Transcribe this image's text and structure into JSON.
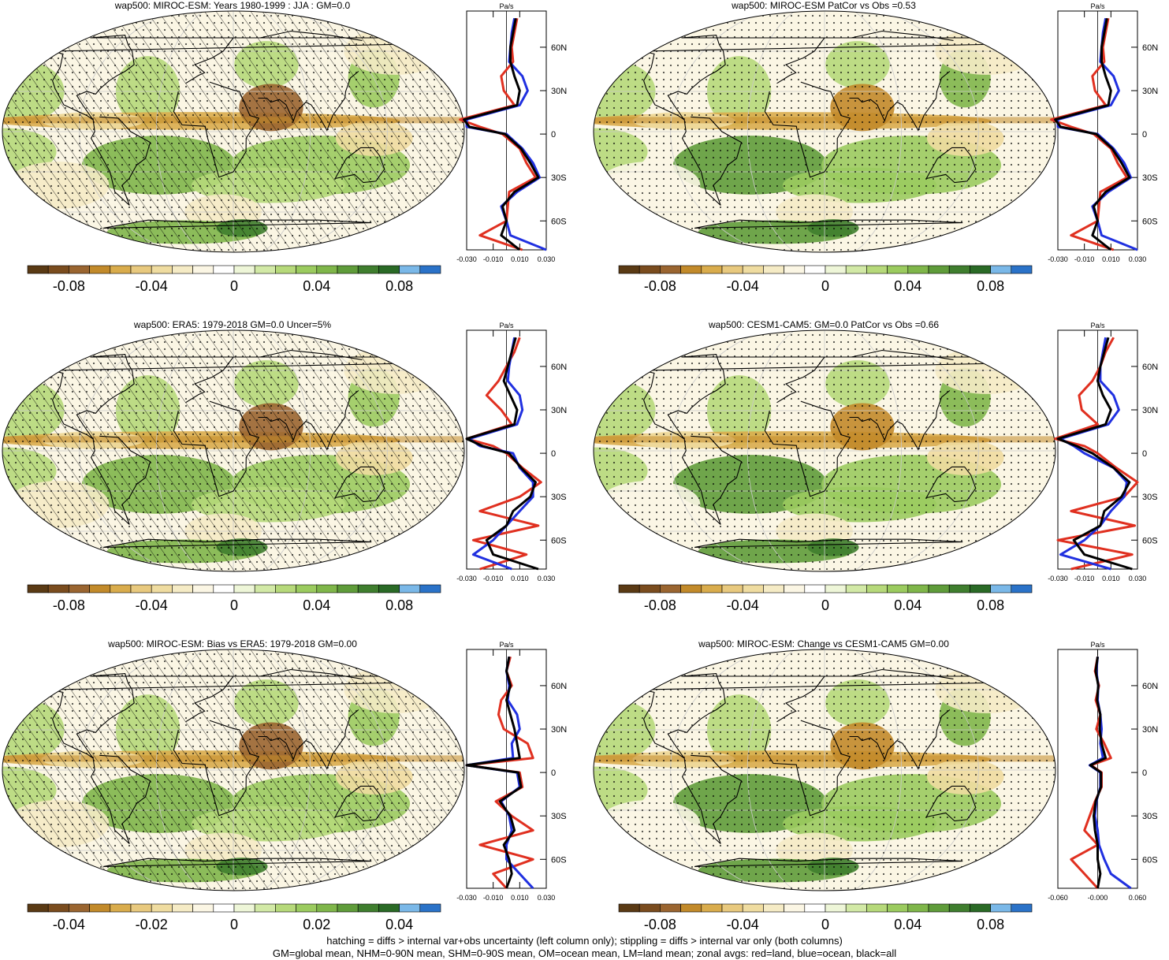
{
  "footer": {
    "line1": "hatching = diffs > internal var+obs uncertainty (left column only); stippling = diffs > internal var only (both columns)",
    "line2": "GM=global mean, NHM=0-90N mean, SHM=0-90S mean, OM=ocean mean, LM=land mean; zonal avgs: red=land, blue=ocean, black=all"
  },
  "colors": {
    "palette": [
      "#5a3a14",
      "#7a4c1e",
      "#9a6530",
      "#c28a2a",
      "#d9ac4c",
      "#e8c97e",
      "#efdca0",
      "#f5ebc5",
      "#fbf6e4",
      "#ffffff",
      "#eef6d8",
      "#d2e9a6",
      "#b6d97a",
      "#9bcb5f",
      "#7fb64a",
      "#5f9c3a",
      "#3f7e2e",
      "#2a6a26",
      "#7ab8e8",
      "#2a72c8"
    ],
    "land": "#e03020",
    "ocean": "#2030e0",
    "all": "#000000",
    "coast": "#000000",
    "grid": "#c8c8c8"
  },
  "chart_data": [
    {
      "type": "heatmap",
      "title": "wap500: MIROC-ESM: Years 1980-1999 : JJA : GM=0.0",
      "colorbar_ticks": [
        "-0.08",
        "-0.04",
        "0",
        "0.04",
        "0.08"
      ],
      "colorbar_range": [
        -0.1,
        0.1
      ],
      "hatching": true,
      "stippling": true,
      "profile": {
        "unit": "Pa/s",
        "x_ticks": [
          "-0.030",
          "-0.010",
          "0.010",
          "0.030"
        ],
        "xlim": [
          -0.03,
          0.03
        ],
        "y_ticks": [
          "60N",
          "30N",
          "0",
          "30S",
          "60S"
        ],
        "y_tick_values": [
          60,
          30,
          0,
          -30,
          -60
        ],
        "ylim": [
          -80,
          85
        ],
        "lat": [
          80,
          70,
          60,
          50,
          40,
          30,
          20,
          10,
          5,
          0,
          -10,
          -20,
          -30,
          -40,
          -50,
          -60,
          -70,
          -80
        ],
        "land": [
          0.008,
          0.006,
          0.004,
          0.005,
          -0.004,
          -0.002,
          0.006,
          -0.035,
          -0.02,
          -0.003,
          0.01,
          0.015,
          0.022,
          0.002,
          0.001,
          0.0,
          -0.02,
          0.012
        ],
        "ocean": [
          0.006,
          0.004,
          0.003,
          0.002,
          0.012,
          0.016,
          0.01,
          -0.03,
          -0.03,
          0.0,
          0.012,
          0.02,
          0.025,
          0.008,
          -0.004,
          0.0,
          0.003,
          0.03
        ],
        "all": [
          0.007,
          0.005,
          0.003,
          0.003,
          0.006,
          0.01,
          0.008,
          -0.032,
          -0.028,
          -0.001,
          0.011,
          0.018,
          0.024,
          0.006,
          -0.003,
          0.0,
          -0.004,
          0.01
        ]
      }
    },
    {
      "type": "heatmap",
      "title": "wap500: MIROC-ESM PatCor vs Obs =0.53",
      "colorbar_ticks": [
        "-0.08",
        "-0.04",
        "0",
        "0.04",
        "0.08"
      ],
      "colorbar_range": [
        -0.1,
        0.1
      ],
      "hatching": false,
      "stippling": true,
      "profile": {
        "unit": "Pa/s",
        "x_ticks": [
          "-0.030",
          "-0.010",
          "0.010",
          "0.030"
        ],
        "xlim": [
          -0.03,
          0.03
        ],
        "y_ticks": [
          "60N",
          "30N",
          "0",
          "30S",
          "60S"
        ],
        "y_tick_values": [
          60,
          30,
          0,
          -30,
          -60
        ],
        "ylim": [
          -80,
          85
        ],
        "lat": [
          80,
          70,
          60,
          50,
          40,
          30,
          20,
          10,
          5,
          0,
          -10,
          -20,
          -30,
          -40,
          -50,
          -60,
          -70,
          -80
        ],
        "land": [
          0.008,
          0.006,
          0.004,
          0.005,
          -0.004,
          -0.002,
          0.006,
          -0.035,
          -0.02,
          -0.003,
          0.01,
          0.015,
          0.022,
          0.002,
          0.001,
          0.0,
          -0.02,
          0.012
        ],
        "ocean": [
          0.006,
          0.004,
          0.003,
          0.002,
          0.012,
          0.016,
          0.01,
          -0.03,
          -0.03,
          0.0,
          0.012,
          0.02,
          0.025,
          0.008,
          -0.004,
          0.0,
          0.003,
          0.03
        ],
        "all": [
          0.007,
          0.005,
          0.003,
          0.003,
          0.006,
          0.01,
          0.008,
          -0.032,
          -0.028,
          -0.001,
          0.011,
          0.018,
          0.024,
          0.006,
          -0.003,
          0.0,
          -0.004,
          0.01
        ]
      }
    },
    {
      "type": "heatmap",
      "title": "wap500: ERA5: 1979-2018 GM=0.0 Uncer=5%",
      "colorbar_ticks": [
        "-0.08",
        "-0.04",
        "0",
        "0.04",
        "0.08"
      ],
      "colorbar_range": [
        -0.1,
        0.1
      ],
      "hatching": true,
      "stippling": true,
      "profile": {
        "unit": "Pa/s",
        "x_ticks": [
          "-0.030",
          "-0.010",
          "0.010",
          "0.030"
        ],
        "xlim": [
          -0.03,
          0.03
        ],
        "y_ticks": [
          "60N",
          "30N",
          "0",
          "30S",
          "60S"
        ],
        "y_tick_values": [
          60,
          30,
          0,
          -30,
          -60
        ],
        "ylim": [
          -80,
          85
        ],
        "lat": [
          80,
          70,
          60,
          50,
          40,
          30,
          20,
          10,
          5,
          0,
          -10,
          -20,
          -30,
          -40,
          -50,
          -60,
          -70,
          -80
        ],
        "land": [
          0.01,
          0.006,
          0.0,
          -0.006,
          -0.015,
          -0.004,
          0.004,
          -0.03,
          -0.01,
          0.0,
          0.012,
          0.026,
          0.01,
          -0.02,
          0.024,
          -0.025,
          0.015,
          -0.02
        ],
        "ocean": [
          0.006,
          0.004,
          0.002,
          0.001,
          0.01,
          0.012,
          0.008,
          -0.028,
          -0.02,
          0.005,
          0.01,
          0.02,
          0.02,
          0.01,
          0.0,
          -0.01,
          -0.025,
          0.004
        ],
        "all": [
          0.007,
          0.004,
          0.001,
          -0.002,
          0.003,
          0.008,
          0.006,
          -0.03,
          -0.018,
          0.002,
          0.011,
          0.022,
          0.018,
          0.005,
          0.0,
          -0.015,
          -0.01,
          0.024
        ]
      }
    },
    {
      "type": "heatmap",
      "title": "wap500: CESM1-CAM5: GM=0.0 PatCor vs Obs =0.66",
      "colorbar_ticks": [
        "-0.08",
        "-0.04",
        "0",
        "0.04",
        "0.08"
      ],
      "colorbar_range": [
        -0.1,
        0.1
      ],
      "hatching": false,
      "stippling": true,
      "profile": {
        "unit": "Pa/s",
        "x_ticks": [
          "-0.030",
          "-0.010",
          "0.010",
          "0.030"
        ],
        "xlim": [
          -0.03,
          0.03
        ],
        "y_ticks": [
          "60N",
          "30N",
          "0",
          "30S",
          "60S"
        ],
        "y_tick_values": [
          60,
          30,
          0,
          -30,
          -60
        ],
        "ylim": [
          -80,
          85
        ],
        "lat": [
          80,
          70,
          60,
          50,
          40,
          30,
          20,
          10,
          5,
          0,
          -10,
          -20,
          -30,
          -40,
          -50,
          -60,
          -70,
          -80
        ],
        "land": [
          0.012,
          0.006,
          0.002,
          -0.004,
          -0.014,
          -0.012,
          0.0,
          -0.032,
          -0.01,
          0.0,
          0.014,
          0.03,
          0.02,
          -0.02,
          0.028,
          -0.03,
          0.026,
          -0.02
        ],
        "ocean": [
          0.006,
          0.004,
          0.002,
          0.002,
          0.012,
          0.016,
          0.008,
          -0.028,
          -0.018,
          -0.01,
          0.012,
          0.022,
          0.02,
          0.01,
          0.002,
          -0.01,
          -0.028,
          0.01
        ],
        "all": [
          0.008,
          0.005,
          0.002,
          0.0,
          0.004,
          0.01,
          0.006,
          -0.03,
          -0.016,
          -0.004,
          0.012,
          0.024,
          0.018,
          0.005,
          0.002,
          -0.018,
          -0.01,
          0.026
        ]
      }
    },
    {
      "type": "heatmap",
      "title": "wap500: MIROC-ESM: Bias vs ERA5: 1979-2018 GM=0.00",
      "colorbar_ticks": [
        "-0.04",
        "-0.02",
        "0",
        "0.02",
        "0.04"
      ],
      "colorbar_range": [
        -0.05,
        0.05
      ],
      "hatching": true,
      "stippling": true,
      "profile": {
        "unit": "Pa/s",
        "x_ticks": [
          "-0.030",
          "-0.010",
          "0.010",
          "0.030"
        ],
        "xlim": [
          -0.03,
          0.03
        ],
        "y_ticks": [
          "60N",
          "30N",
          "0",
          "30S",
          "60S"
        ],
        "y_tick_values": [
          60,
          30,
          0,
          -30,
          -60
        ],
        "ylim": [
          -80,
          85
        ],
        "lat": [
          80,
          70,
          60,
          50,
          40,
          30,
          20,
          10,
          5,
          0,
          -10,
          -20,
          -30,
          -40,
          -50,
          -60,
          -70,
          -80
        ],
        "land": [
          0.003,
          0.0,
          0.004,
          -0.004,
          -0.006,
          -0.002,
          0.016,
          0.02,
          -0.03,
          0.01,
          0.012,
          -0.008,
          0.004,
          0.02,
          -0.02,
          0.02,
          -0.01,
          0.0
        ],
        "ocean": [
          0.002,
          0.0,
          0.002,
          0.001,
          0.008,
          0.01,
          0.004,
          0.005,
          -0.03,
          0.008,
          0.01,
          -0.004,
          0.002,
          0.004,
          0.0,
          0.0,
          0.01,
          0.02
        ],
        "all": [
          0.002,
          0.0,
          0.003,
          0.0,
          0.003,
          0.006,
          0.008,
          0.01,
          -0.03,
          0.009,
          0.011,
          -0.005,
          0.003,
          0.006,
          -0.002,
          0.002,
          0.004,
          0.0
        ]
      }
    },
    {
      "type": "heatmap",
      "title": "wap500: MIROC-ESM: Change vs CESM1-CAM5 GM=0.00",
      "colorbar_ticks": [
        "-0.08",
        "-0.04",
        "0",
        "0.04",
        "0.08"
      ],
      "colorbar_range": [
        -0.1,
        0.1
      ],
      "hatching": false,
      "stippling": true,
      "profile": {
        "unit": "Pa/s",
        "x_ticks": [
          "-0.060",
          "-0.000",
          "0.060"
        ],
        "xlim": [
          -0.06,
          0.06
        ],
        "y_ticks": [
          "60N",
          "30N",
          "0",
          "30S",
          "60S"
        ],
        "y_tick_values": [
          60,
          30,
          0,
          -30,
          -60
        ],
        "ylim": [
          -80,
          85
        ],
        "lat": [
          80,
          70,
          60,
          50,
          40,
          30,
          20,
          10,
          5,
          0,
          -10,
          -20,
          -30,
          -40,
          -50,
          -60,
          -70,
          -80
        ],
        "land": [
          0.0,
          -0.004,
          0.002,
          -0.003,
          0.004,
          -0.002,
          0.01,
          0.02,
          -0.01,
          0.006,
          0.006,
          -0.004,
          -0.012,
          -0.02,
          0.0,
          -0.04,
          -0.02,
          0.0
        ],
        "ocean": [
          0.0,
          -0.002,
          0.001,
          0.0,
          0.004,
          0.006,
          0.004,
          0.008,
          -0.012,
          0.004,
          0.004,
          -0.002,
          -0.004,
          0.0,
          0.002,
          0.01,
          0.02,
          0.05
        ],
        "all": [
          0.0,
          -0.003,
          0.001,
          -0.001,
          0.004,
          0.003,
          0.006,
          0.012,
          -0.011,
          0.005,
          0.005,
          -0.003,
          -0.006,
          -0.004,
          0.0,
          0.0,
          0.004,
          0.0
        ]
      }
    }
  ]
}
